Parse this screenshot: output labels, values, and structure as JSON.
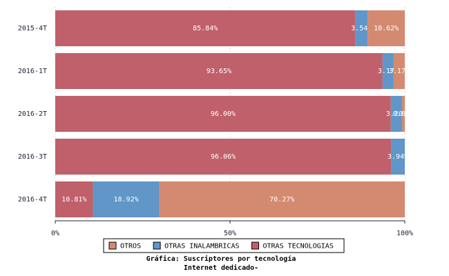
{
  "chart_data": {
    "type": "stacked-barh",
    "title": [
      "Gráfica: Suscriptores por tecnología",
      "Internet dedicado-"
    ],
    "categories": [
      "2015-4T",
      "2016-1T",
      "2016-2T",
      "2016-3T",
      "2016-4T"
    ],
    "series": [
      {
        "name": "OTRAS TECNOLOGIAS",
        "color": "#c0606a",
        "values": [
          85.84,
          93.65,
          96.0,
          96.06,
          10.81
        ],
        "value_labels": [
          "85.84%",
          "93.65%",
          "96.00%",
          "96.06%",
          "10.81%"
        ]
      },
      {
        "name": "OTRAS INALAMBRICAS",
        "color": "#6096c8",
        "values": [
          3.54,
          3.17,
          3.2,
          3.94,
          18.92
        ],
        "value_labels": [
          "3.54%",
          "3.17%",
          "3.20%",
          "3.94%",
          "18.92%"
        ]
      },
      {
        "name": "OTROS",
        "color": "#d48a70",
        "values": [
          10.62,
          3.17,
          0.8,
          0,
          70.27
        ],
        "value_labels": [
          "10.62%",
          "3.17%",
          "0.80%",
          null,
          "70.27%"
        ]
      }
    ],
    "xlim": [
      0,
      100
    ],
    "xticks": [
      {
        "value": 0,
        "label": "0%"
      },
      {
        "value": 50,
        "label": "50%"
      },
      {
        "value": 100,
        "label": "100%"
      }
    ],
    "grid": true
  }
}
